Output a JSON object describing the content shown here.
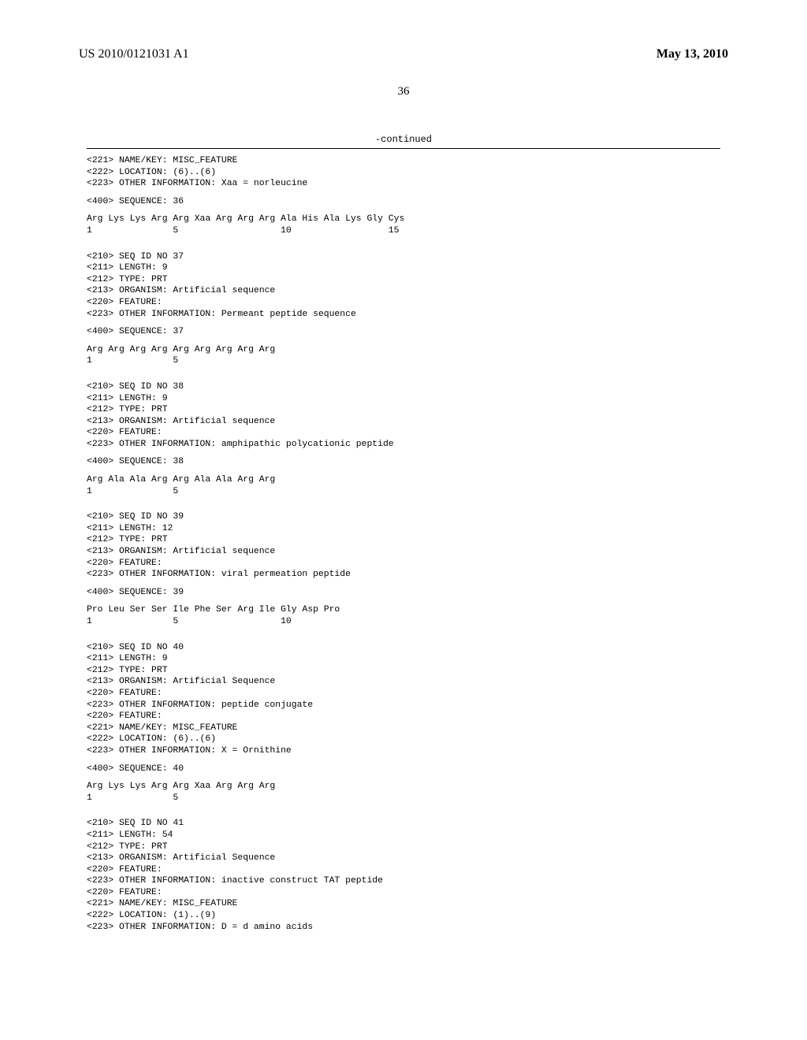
{
  "header": {
    "left": "US 2010/0121031 A1",
    "right": "May 13, 2010"
  },
  "page_number": "36",
  "continued": "-continued",
  "blocks": {
    "b0": {
      "l1": "<221> NAME/KEY: MISC_FEATURE",
      "l2": "<222> LOCATION: (6)..(6)",
      "l3": "<223> OTHER INFORMATION: Xaa = norleucine"
    },
    "b1": {
      "l1": "<400> SEQUENCE: 36"
    },
    "b2": {
      "l1": "Arg Lys Lys Arg Arg Xaa Arg Arg Arg Ala His Ala Lys Gly Cys",
      "l2": "1               5                   10                  15"
    },
    "b3": {
      "l1": "<210> SEQ ID NO 37",
      "l2": "<211> LENGTH: 9",
      "l3": "<212> TYPE: PRT",
      "l4": "<213> ORGANISM: Artificial sequence",
      "l5": "<220> FEATURE:",
      "l6": "<223> OTHER INFORMATION: Permeant peptide sequence"
    },
    "b4": {
      "l1": "<400> SEQUENCE: 37"
    },
    "b5": {
      "l1": "Arg Arg Arg Arg Arg Arg Arg Arg Arg",
      "l2": "1               5"
    },
    "b6": {
      "l1": "<210> SEQ ID NO 38",
      "l2": "<211> LENGTH: 9",
      "l3": "<212> TYPE: PRT",
      "l4": "<213> ORGANISM: Artificial sequence",
      "l5": "<220> FEATURE:",
      "l6": "<223> OTHER INFORMATION: amphipathic polycationic peptide"
    },
    "b7": {
      "l1": "<400> SEQUENCE: 38"
    },
    "b8": {
      "l1": "Arg Ala Ala Arg Arg Ala Ala Arg Arg",
      "l2": "1               5"
    },
    "b9": {
      "l1": "<210> SEQ ID NO 39",
      "l2": "<211> LENGTH: 12",
      "l3": "<212> TYPE: PRT",
      "l4": "<213> ORGANISM: Artificial sequence",
      "l5": "<220> FEATURE:",
      "l6": "<223> OTHER INFORMATION: viral permeation peptide"
    },
    "b10": {
      "l1": "<400> SEQUENCE: 39"
    },
    "b11": {
      "l1": "Pro Leu Ser Ser Ile Phe Ser Arg Ile Gly Asp Pro",
      "l2": "1               5                   10"
    },
    "b12": {
      "l1": "<210> SEQ ID NO 40",
      "l2": "<211> LENGTH: 9",
      "l3": "<212> TYPE: PRT",
      "l4": "<213> ORGANISM: Artificial Sequence",
      "l5": "<220> FEATURE:",
      "l6": "<223> OTHER INFORMATION: peptide conjugate",
      "l7": "<220> FEATURE:",
      "l8": "<221> NAME/KEY: MISC_FEATURE",
      "l9": "<222> LOCATION: (6)..(6)",
      "l10": "<223> OTHER INFORMATION: X = Ornithine"
    },
    "b13": {
      "l1": "<400> SEQUENCE: 40"
    },
    "b14": {
      "l1": "Arg Lys Lys Arg Arg Xaa Arg Arg Arg",
      "l2": "1               5"
    },
    "b15": {
      "l1": "<210> SEQ ID NO 41",
      "l2": "<211> LENGTH: 54",
      "l3": "<212> TYPE: PRT",
      "l4": "<213> ORGANISM: Artificial Sequence",
      "l5": "<220> FEATURE:",
      "l6": "<223> OTHER INFORMATION: inactive construct TAT peptide",
      "l7": "<220> FEATURE:",
      "l8": "<221> NAME/KEY: MISC_FEATURE",
      "l9": "<222> LOCATION: (1)..(9)",
      "l10": "<223> OTHER INFORMATION: D = d amino acids"
    }
  }
}
